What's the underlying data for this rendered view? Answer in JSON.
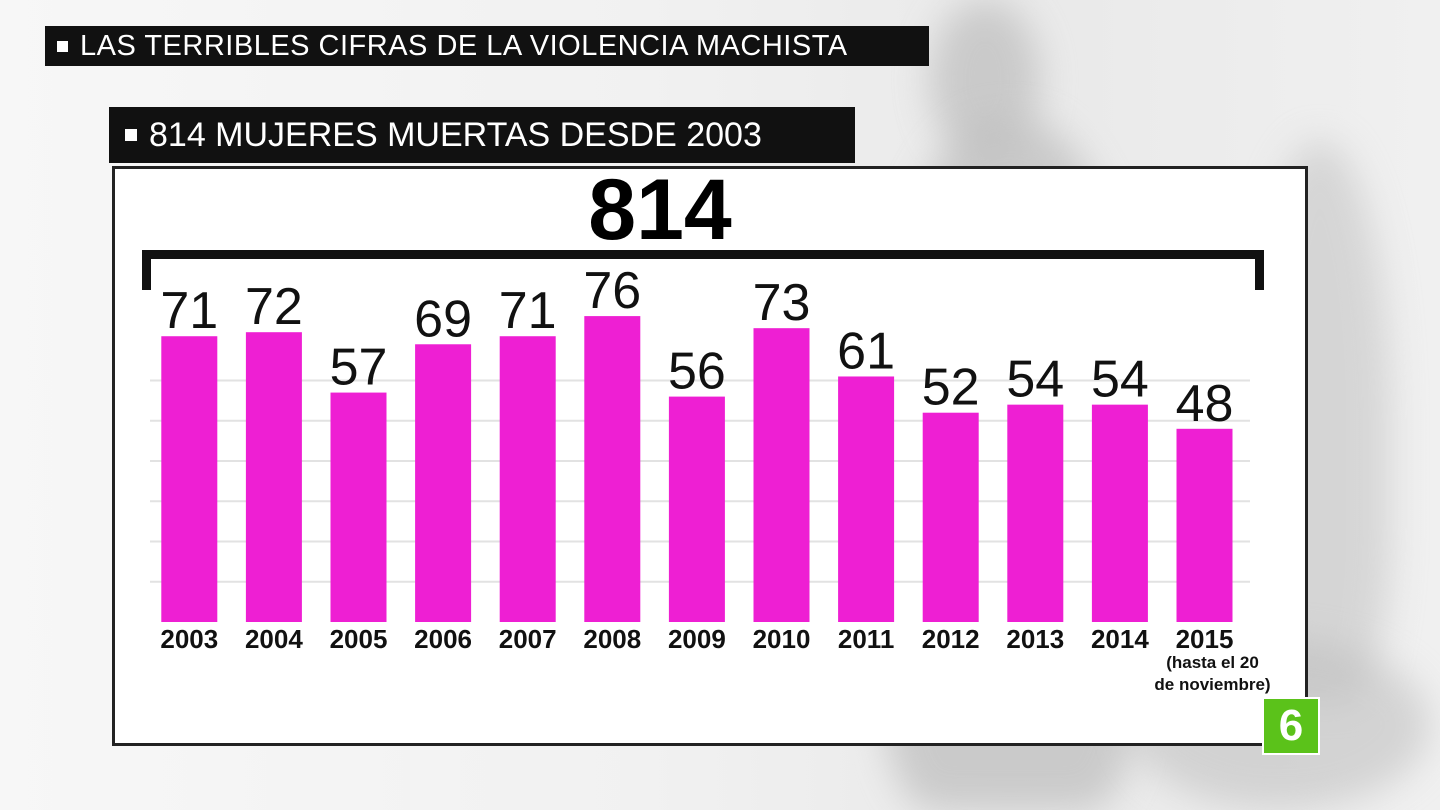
{
  "header": {
    "title": "LAS TERRIBLES CIFRAS DE LA VIOLENCIA MACHISTA"
  },
  "subheader": {
    "title": "814 MUJERES MUERTAS DESDE 2003"
  },
  "total_label": "814",
  "logo": {
    "text": "6",
    "color": "#5bc21a"
  },
  "colors": {
    "bar": "#ee1fd3",
    "text": "#111111",
    "grid": "#e2e2e2"
  },
  "chart_data": {
    "type": "bar",
    "categories": [
      "2003",
      "2004",
      "2005",
      "2006",
      "2007",
      "2008",
      "2009",
      "2010",
      "2011",
      "2012",
      "2013",
      "2014",
      "2015"
    ],
    "values": [
      71,
      72,
      57,
      69,
      71,
      76,
      56,
      73,
      61,
      52,
      54,
      54,
      48
    ],
    "category_note": "(hasta el 20 de noviembre)",
    "title": "814 MUJERES MUERTAS DESDE 2003",
    "ylim": [
      0,
      80
    ],
    "grid": true,
    "data_labels": true
  }
}
